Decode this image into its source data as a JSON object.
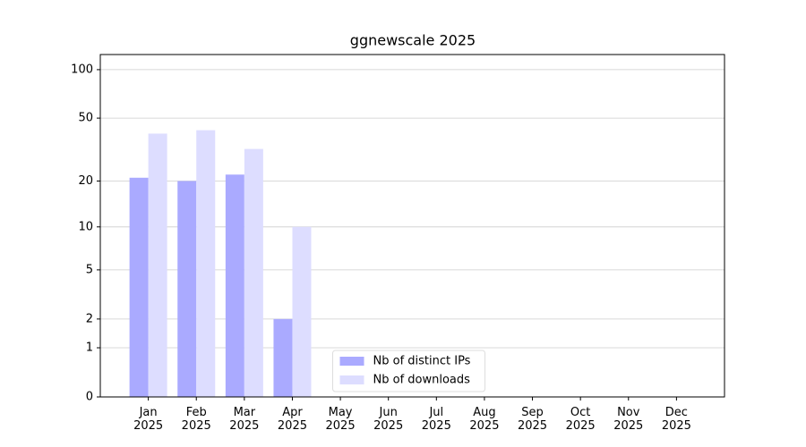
{
  "chart_data": {
    "type": "bar",
    "title": "ggnewscale 2025",
    "categories": [
      "Jan\n2025",
      "Feb\n2025",
      "Mar\n2025",
      "Apr\n2025",
      "May\n2025",
      "Jun\n2025",
      "Jul\n2025",
      "Aug\n2025",
      "Sep\n2025",
      "Oct\n2025",
      "Nov\n2025",
      "Dec\n2025"
    ],
    "series": [
      {
        "name": "Nb of distinct IPs",
        "color": "#aaaaff",
        "values": [
          21,
          20,
          22,
          2,
          0,
          0,
          0,
          0,
          0,
          0,
          0,
          0
        ]
      },
      {
        "name": "Nb of downloads",
        "color": "#ddddff",
        "values": [
          40,
          42,
          32,
          10,
          0,
          0,
          0,
          0,
          0,
          0,
          0,
          0
        ]
      }
    ],
    "y_scale": "log1p",
    "ylim": [
      0,
      124
    ],
    "yticks": [
      0,
      1,
      2,
      5,
      10,
      20,
      50,
      100
    ],
    "grid": true,
    "legend": "lower center"
  }
}
